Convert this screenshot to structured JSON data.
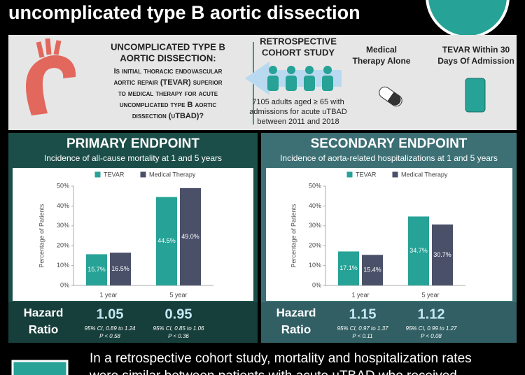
{
  "header": {
    "title": "uncomplicated type B aortic dissection"
  },
  "question": {
    "heading": [
      "UNCOMPLICATED TYPE B",
      "AORTIC DISSECTION:"
    ],
    "lines": [
      "Is initial thoracic endovascular",
      "aortic repair (TEVAR) superior",
      "to medical therapy for acute",
      "uncomplicated type B aortic",
      "dissection (uTBAD)?"
    ]
  },
  "study": {
    "heading": [
      "RETROSPECTIVE",
      "COHORT STUDY"
    ],
    "lines": [
      "7105 adults aged ≥ 65 with",
      "admissions for acute uTBAD",
      "between 2011 and 2018"
    ]
  },
  "arms": [
    {
      "label": [
        "Medical",
        "Therapy Alone"
      ]
    },
    {
      "label": [
        "TEVAR Within 30",
        "Days Of Admission"
      ]
    }
  ],
  "chart_data": [
    {
      "type": "bar",
      "title": "PRIMARY ENDPOINT",
      "subtitle": "Incidence of all-cause mortality at 1 and 5 years",
      "ylabel": "Percentage of Patients",
      "categories": [
        "1 year",
        "5 year"
      ],
      "series": [
        {
          "name": "TEVAR",
          "color": "#26a296",
          "values": [
            15.7,
            44.5
          ],
          "value_labels": [
            "15.7%",
            "44.5%"
          ]
        },
        {
          "name": "Medical Therapy",
          "color": "#4b5069",
          "values": [
            16.5,
            49.0
          ],
          "value_labels": [
            "16.5%",
            "49.0%"
          ]
        }
      ],
      "ylim": [
        0,
        50
      ],
      "yticks": [
        {
          "value": 0,
          "label": "0%"
        },
        {
          "value": 10,
          "label": "10%"
        },
        {
          "value": 20,
          "label": "20%"
        },
        {
          "value": 30,
          "label": "30%"
        },
        {
          "value": 40,
          "label": "40%"
        },
        {
          "value": 50,
          "label": "50%"
        }
      ],
      "hazard": {
        "label": [
          "Hazard",
          "Ratio"
        ],
        "items": [
          {
            "value": "1.05",
            "ci": "95% CI, 0.89 to 1.24",
            "p": "P < 0.58"
          },
          {
            "value": "0.95",
            "ci": "95% CI, 0.85 to 1.06",
            "p": "P < 0.36"
          }
        ]
      }
    },
    {
      "type": "bar",
      "title": "SECONDARY ENDPOINT",
      "subtitle": "Incidence of aorta-related hospitalizations at 1 and 5 years",
      "ylabel": "Percentage of Patients",
      "categories": [
        "1 year",
        "5 year"
      ],
      "series": [
        {
          "name": "TEVAR",
          "color": "#26a296",
          "values": [
            17.1,
            34.7
          ],
          "value_labels": [
            "17.1%",
            "34.7%"
          ]
        },
        {
          "name": "Medical Therapy",
          "color": "#4b5069",
          "values": [
            15.4,
            30.7
          ],
          "value_labels": [
            "15.4%",
            "30.7%"
          ]
        }
      ],
      "ylim": [
        0,
        50
      ],
      "yticks": [
        {
          "value": 0,
          "label": "0%"
        },
        {
          "value": 10,
          "label": "10%"
        },
        {
          "value": 20,
          "label": "20%"
        },
        {
          "value": 30,
          "label": "30%"
        },
        {
          "value": 40,
          "label": "40%"
        },
        {
          "value": 50,
          "label": "50%"
        }
      ],
      "hazard": {
        "label": [
          "Hazard",
          "Ratio"
        ],
        "items": [
          {
            "value": "1.15",
            "ci": "95% CI, 0.97 to 1.37",
            "p": "P < 0.11"
          },
          {
            "value": "1.12",
            "ci": "95% CI, 0.99 to 1.27",
            "p": "P < 0.08"
          }
        ]
      }
    }
  ],
  "footer": {
    "lines": [
      "In a retrospective cohort study, mortality and hospitalization rates",
      "were similar between patients with acute uTBAD who received"
    ]
  }
}
